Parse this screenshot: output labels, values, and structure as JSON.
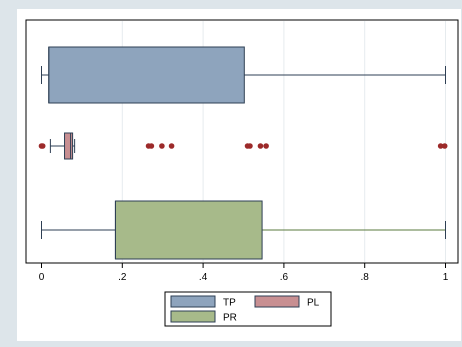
{
  "chart_data": {
    "type": "box",
    "orientation": "horizontal",
    "title": "",
    "xlabel": "",
    "ylabel": "",
    "xlim": [
      -0.02,
      1.04
    ],
    "x_ticks": [
      {
        "value": 0,
        "label": "0"
      },
      {
        "value": 0.2,
        "label": ".2"
      },
      {
        "value": 0.4,
        "label": ".4"
      },
      {
        "value": 0.6,
        "label": ".6"
      },
      {
        "value": 0.8,
        "label": ".8"
      },
      {
        "value": 1,
        "label": "1"
      }
    ],
    "grid": true,
    "legend_position": "bottom",
    "series": [
      {
        "name": "TP",
        "color": "#8ea4bd",
        "min": 0.0,
        "q1": 0.018,
        "median": 0.018,
        "q3": 0.502,
        "max": 1.0,
        "outliers": []
      },
      {
        "name": "PL",
        "color": "#c88f92",
        "min": 0.022,
        "q1": 0.057,
        "median": 0.072,
        "q3": 0.077,
        "max": 0.082,
        "outliers": [
          0.0,
          0.003,
          0.265,
          0.272,
          0.298,
          0.322,
          0.51,
          0.516,
          0.542,
          0.556,
          0.988,
          0.998
        ]
      },
      {
        "name": "PR",
        "color": "#a7ba8a",
        "min": 0.0,
        "q1": 0.183,
        "median": 0.183,
        "q3": 0.546,
        "max": 1.0,
        "outliers": []
      }
    ]
  },
  "colors": {
    "background": "#dde5ea",
    "plot_region": "#ffffff",
    "outlier": "#9c2a2a",
    "grid": "#e6ebee"
  }
}
